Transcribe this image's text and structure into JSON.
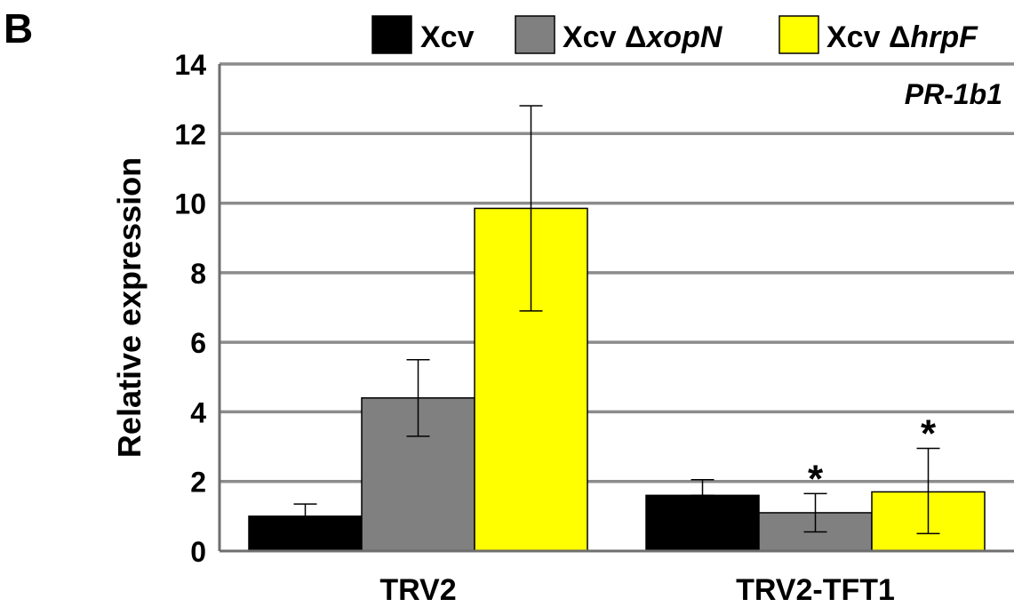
{
  "panel_label": "B",
  "chart_data": {
    "type": "bar",
    "title": "",
    "annotation": "PR-1b1",
    "xlabel": "",
    "ylabel": "Relative expression",
    "ylim": [
      0,
      14
    ],
    "yticks": [
      0,
      2,
      4,
      6,
      8,
      10,
      12,
      14
    ],
    "grid": true,
    "legend_position": "top",
    "categories": [
      "TRV2",
      "TRV2-TFT1"
    ],
    "series": [
      {
        "name": "Xcv",
        "name_prefix": "Xcv ",
        "name_italic": "",
        "color": "#000000",
        "values": [
          1.0,
          1.6
        ],
        "err_low": [
          0.0,
          1.6
        ],
        "err_high": [
          1.35,
          2.05
        ],
        "significant": [
          false,
          false
        ]
      },
      {
        "name": "Xcv ΔxopN",
        "name_prefix": "Xcv Δ",
        "name_italic": "xopN",
        "color": "#808080",
        "values": [
          4.4,
          1.1
        ],
        "err_low": [
          3.3,
          0.55
        ],
        "err_high": [
          5.5,
          1.65
        ],
        "significant": [
          false,
          true
        ]
      },
      {
        "name": "Xcv ΔhrpF",
        "name_prefix": "Xcv Δ",
        "name_italic": "hrpF",
        "color": "#ffff00",
        "values": [
          9.85,
          1.7
        ],
        "err_low": [
          6.9,
          0.5
        ],
        "err_high": [
          12.8,
          2.95
        ],
        "significant": [
          false,
          true
        ]
      }
    ],
    "significance_marker": "*"
  }
}
